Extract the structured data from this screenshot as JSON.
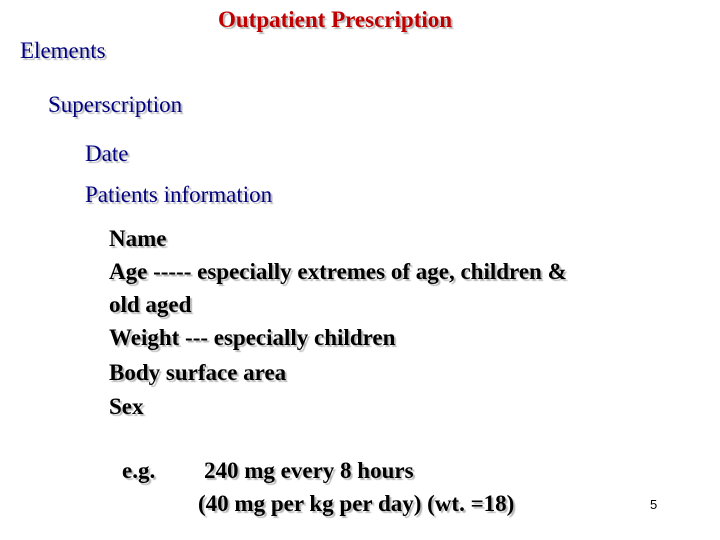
{
  "slide": {
    "title": "Outpatient Prescription",
    "heading": "Elements",
    "superscription": "Superscription",
    "date": "Date",
    "patients_information": "Patients information",
    "details": {
      "name": "Name",
      "age_line1": "Age ----- especially extremes of age, children &",
      "age_line2": "old aged",
      "weight": "Weight  --- especially children",
      "body_surface_area": "Body surface area",
      "sex": "Sex"
    },
    "example": {
      "label": "e.g.",
      "line1": "240 mg every 8 hours",
      "line2": "(40 mg per kg per day) (wt. =18)"
    },
    "page_number": "5"
  },
  "colors": {
    "title": "#c00000",
    "heading": "#000080",
    "body_text": "#000000",
    "background": "#ffffff"
  }
}
